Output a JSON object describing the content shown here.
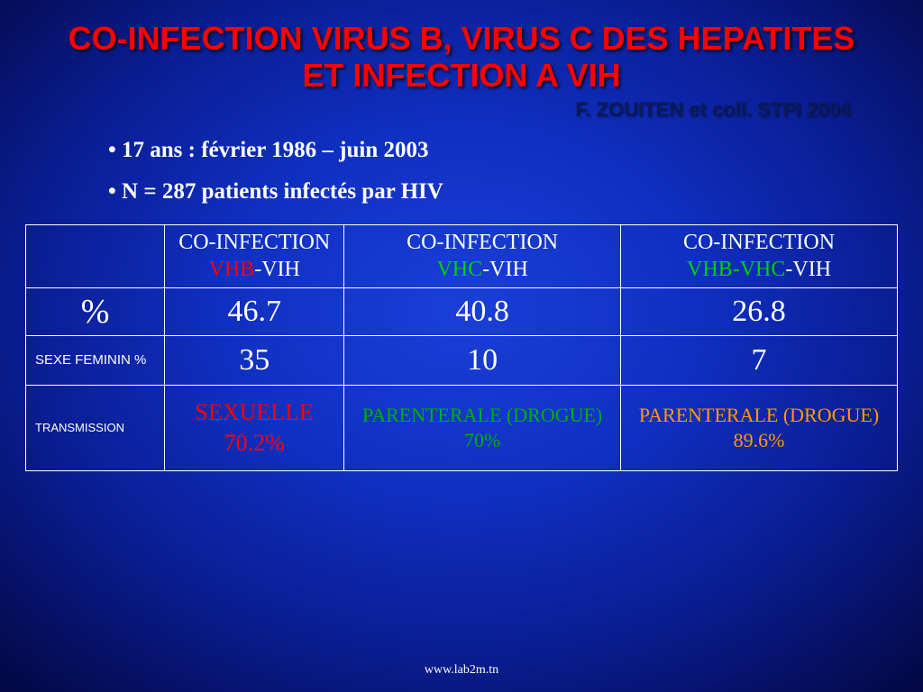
{
  "title_line1": "CO-INFECTION VIRUS B, VIRUS C DES HEPATITES",
  "title_line2": "ET INFECTION A VIH",
  "subtitle": "F. ZOUITEN et coll. STPI 2004",
  "bullets": [
    "17 ans : février 1986 – juin 2003",
    "N = 287 patients infectés par HIV"
  ],
  "table": {
    "headers": [
      {
        "top": "CO-INFECTION",
        "bottom_pre": "VHB",
        "bottom_post": "-VIH",
        "accent_class": "vhb"
      },
      {
        "top": "CO-INFECTION",
        "bottom_pre": "VHC",
        "bottom_post": "-VIH",
        "accent_class": "vhc"
      },
      {
        "top": "CO-INFECTION",
        "bottom_pre": "VHB-VHC",
        "bottom_post": "-VIH",
        "accent_class": "vhbvhc"
      }
    ],
    "rows": [
      {
        "label": "%",
        "label_class": "rowlabel-big",
        "cells": [
          "46.7",
          "40.8",
          "26.8"
        ],
        "cell_class": "val-big"
      },
      {
        "label": "SEXE FEMININ %",
        "label_class": "rowlabel-small",
        "cells": [
          "35",
          "10",
          "7"
        ],
        "cell_class": "val-big"
      }
    ],
    "transmission": {
      "label": "TRANSMISSION",
      "cells": [
        {
          "l1": "SEXUELLE",
          "l2": "70.2%",
          "class": "trans-red"
        },
        {
          "l1": "PARENTERALE (DROGUE)",
          "l2": "70%",
          "class": "trans-green"
        },
        {
          "l1": "PARENTERALE (DROGUE)",
          "l2": "89.6%",
          "class": "trans-orange"
        }
      ]
    }
  },
  "footer": "www.lab2m.tn",
  "colors": {
    "title": "#ff0000",
    "text": "#ffffff",
    "vhb": "#ff0000",
    "vhc": "#00d000",
    "trans_red": "#ff0000",
    "trans_green": "#00b000",
    "trans_orange": "#ff9a00",
    "bg_center": "#1a3fd8",
    "bg_edge": "#000020"
  }
}
